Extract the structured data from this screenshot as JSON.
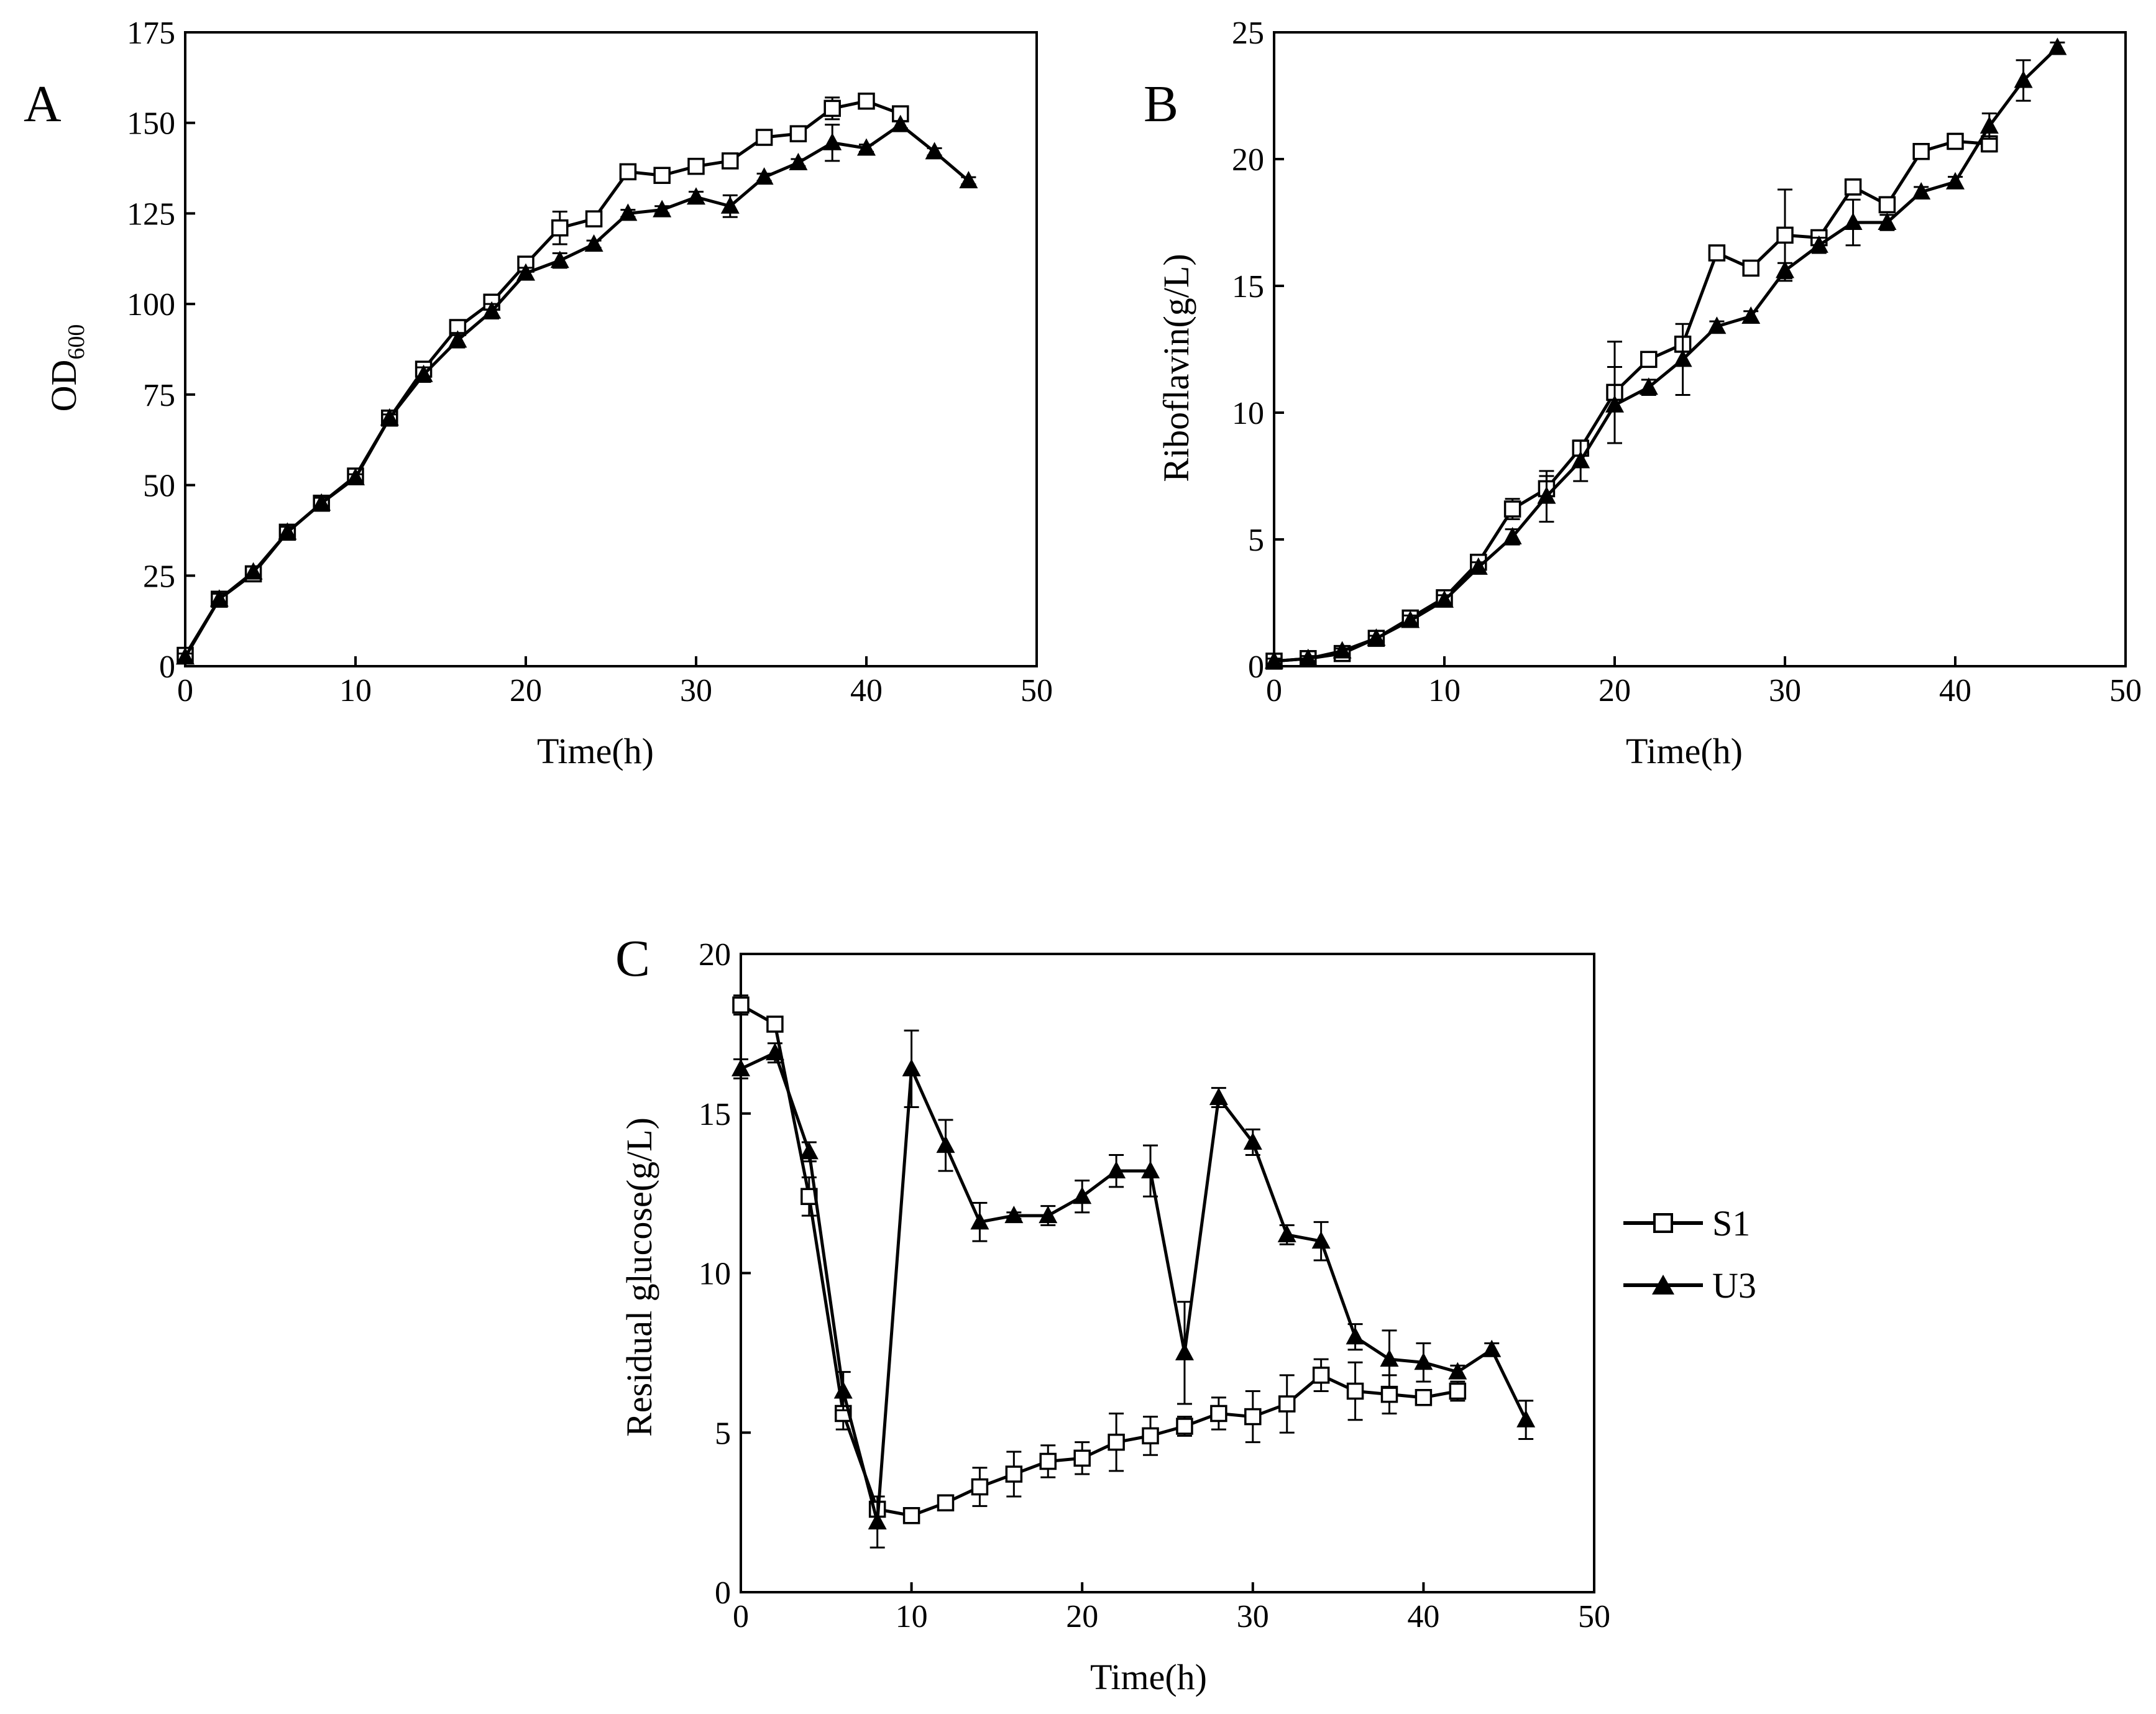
{
  "legend": {
    "items": [
      {
        "name": "S1",
        "marker": "square-open"
      },
      {
        "name": "U3",
        "marker": "triangle-filled"
      }
    ]
  },
  "chart_data": [
    {
      "panel": "A",
      "type": "line",
      "xlabel": "Time(h)",
      "ylabel_main": "OD",
      "ylabel_sub": "600",
      "xlim": [
        0,
        50
      ],
      "ylim": [
        0,
        175
      ],
      "xticks": [
        0,
        10,
        20,
        30,
        40,
        50
      ],
      "yticks": [
        0,
        25,
        50,
        75,
        100,
        125,
        150,
        175
      ],
      "series": [
        {
          "name": "S1",
          "marker": "square-open",
          "x": [
            0,
            2,
            4,
            6,
            8,
            10,
            12,
            14,
            16,
            18,
            20,
            22,
            24,
            26,
            28,
            30,
            32,
            34,
            36,
            38,
            40,
            42
          ],
          "y": [
            3,
            18.5,
            25.5,
            37,
            45,
            52.5,
            68.5,
            82,
            93.5,
            100.5,
            111,
            121,
            123.5,
            136.5,
            135.5,
            138,
            139.5,
            146,
            147,
            154,
            156,
            152.5
          ],
          "err": [
            1,
            1.5,
            1.5,
            1.5,
            1.5,
            1,
            1,
            2,
            2,
            2,
            2,
            4.5,
            1,
            1.5,
            1,
            1,
            1,
            1,
            1,
            3,
            1,
            1.5
          ]
        },
        {
          "name": "U3",
          "marker": "triangle-filled",
          "x": [
            0,
            2,
            4,
            6,
            8,
            10,
            12,
            14,
            16,
            18,
            20,
            22,
            24,
            26,
            28,
            30,
            32,
            34,
            36,
            38,
            40,
            42,
            44,
            46
          ],
          "y": [
            2.5,
            18.5,
            26,
            37,
            45,
            52,
            68.5,
            80.5,
            90,
            98,
            108.5,
            112,
            116.5,
            125,
            126,
            129.5,
            127,
            135,
            139,
            144.5,
            143,
            149.5,
            142,
            134
          ],
          "err": [
            1,
            1.5,
            1.5,
            1.5,
            1.5,
            1,
            1,
            2,
            2,
            2,
            1.5,
            2,
            1,
            1,
            1,
            1.5,
            3,
            1,
            1,
            5,
            1,
            1,
            1,
            1
          ]
        }
      ]
    },
    {
      "panel": "B",
      "type": "line",
      "xlabel": "Time(h)",
      "ylabel": "Riboflavin(g/L)",
      "xlim": [
        0,
        50
      ],
      "ylim": [
        0,
        25
      ],
      "xticks": [
        0,
        10,
        20,
        30,
        40,
        50
      ],
      "yticks": [
        0,
        5,
        10,
        15,
        20,
        25
      ],
      "series": [
        {
          "name": "S1",
          "marker": "square-open",
          "x": [
            0,
            2,
            4,
            6,
            8,
            10,
            12,
            14,
            16,
            18,
            20,
            22,
            24,
            26,
            28,
            30,
            32,
            34,
            36,
            38,
            40,
            42
          ],
          "y": [
            0.2,
            0.3,
            0.5,
            1.1,
            1.9,
            2.7,
            4.1,
            6.2,
            7.0,
            8.6,
            10.8,
            12.1,
            12.7,
            16.3,
            15.7,
            17.0,
            16.9,
            18.9,
            18.2,
            20.3,
            20.7,
            20.6
          ],
          "err": [
            0.1,
            0.1,
            0.1,
            0.1,
            0.2,
            0.2,
            0.2,
            0.4,
            0.5,
            0.3,
            2.0,
            0.2,
            0.3,
            0.2,
            0.2,
            1.8,
            0.2,
            0.3,
            0.3,
            0.2,
            0.3,
            0.3
          ]
        },
        {
          "name": "U3",
          "marker": "triangle-filled",
          "x": [
            0,
            2,
            4,
            6,
            8,
            10,
            12,
            14,
            16,
            18,
            20,
            22,
            24,
            26,
            28,
            30,
            32,
            34,
            36,
            38,
            40,
            42,
            44,
            46
          ],
          "y": [
            0.2,
            0.3,
            0.6,
            1.1,
            1.8,
            2.6,
            3.9,
            5.1,
            6.7,
            8.1,
            10.3,
            11.0,
            12.1,
            13.4,
            13.8,
            15.6,
            16.6,
            17.5,
            17.5,
            18.7,
            19.1,
            21.3,
            23.1,
            24.4
          ],
          "err": [
            0.1,
            0.1,
            0.1,
            0.1,
            0.2,
            0.2,
            0.2,
            0.3,
            1.0,
            0.8,
            1.5,
            0.3,
            1.4,
            0.2,
            0.2,
            0.3,
            0.3,
            0.9,
            0.3,
            0.2,
            0.2,
            0.5,
            0.8,
            0.2
          ]
        }
      ]
    },
    {
      "panel": "C",
      "type": "line",
      "xlabel": "Time(h)",
      "ylabel": "Residual glucose(g/L)",
      "xlim": [
        0,
        50
      ],
      "ylim": [
        0,
        20
      ],
      "xticks": [
        0,
        10,
        20,
        30,
        40,
        50
      ],
      "yticks": [
        0,
        5,
        10,
        15,
        20
      ],
      "series": [
        {
          "name": "S1",
          "marker": "square-open",
          "x": [
            0,
            2,
            4,
            6,
            8,
            10,
            12,
            14,
            16,
            18,
            20,
            22,
            24,
            26,
            28,
            30,
            32,
            34,
            36,
            38,
            40,
            42
          ],
          "y": [
            18.4,
            17.8,
            12.4,
            5.6,
            2.6,
            2.4,
            2.8,
            3.3,
            3.7,
            4.1,
            4.2,
            4.7,
            4.9,
            5.2,
            5.6,
            5.5,
            5.9,
            6.8,
            6.3,
            6.2,
            6.1,
            6.3
          ],
          "err": [
            0.3,
            0.2,
            0.6,
            0.5,
            0.2,
            0.1,
            0.2,
            0.6,
            0.7,
            0.5,
            0.5,
            0.9,
            0.6,
            0.3,
            0.5,
            0.8,
            0.9,
            0.5,
            0.9,
            0.6,
            0.1,
            0.3
          ]
        },
        {
          "name": "U3",
          "marker": "triangle-filled",
          "x": [
            0,
            2,
            4,
            6,
            8,
            10,
            12,
            14,
            16,
            18,
            20,
            22,
            24,
            26,
            28,
            30,
            32,
            34,
            36,
            38,
            40,
            42,
            44,
            46
          ],
          "y": [
            16.4,
            16.9,
            13.8,
            6.3,
            2.2,
            16.4,
            14.0,
            11.6,
            11.8,
            11.8,
            12.4,
            13.2,
            13.2,
            7.5,
            15.5,
            14.1,
            11.2,
            11.0,
            8.0,
            7.3,
            7.2,
            6.9,
            7.6,
            5.4
          ],
          "err": [
            0.3,
            0.3,
            0.3,
            0.6,
            0.8,
            1.2,
            0.8,
            0.6,
            0.1,
            0.3,
            0.5,
            0.5,
            0.8,
            1.6,
            0.3,
            0.4,
            0.3,
            0.6,
            0.4,
            0.9,
            0.6,
            0.2,
            0.2,
            0.6
          ]
        }
      ]
    }
  ]
}
